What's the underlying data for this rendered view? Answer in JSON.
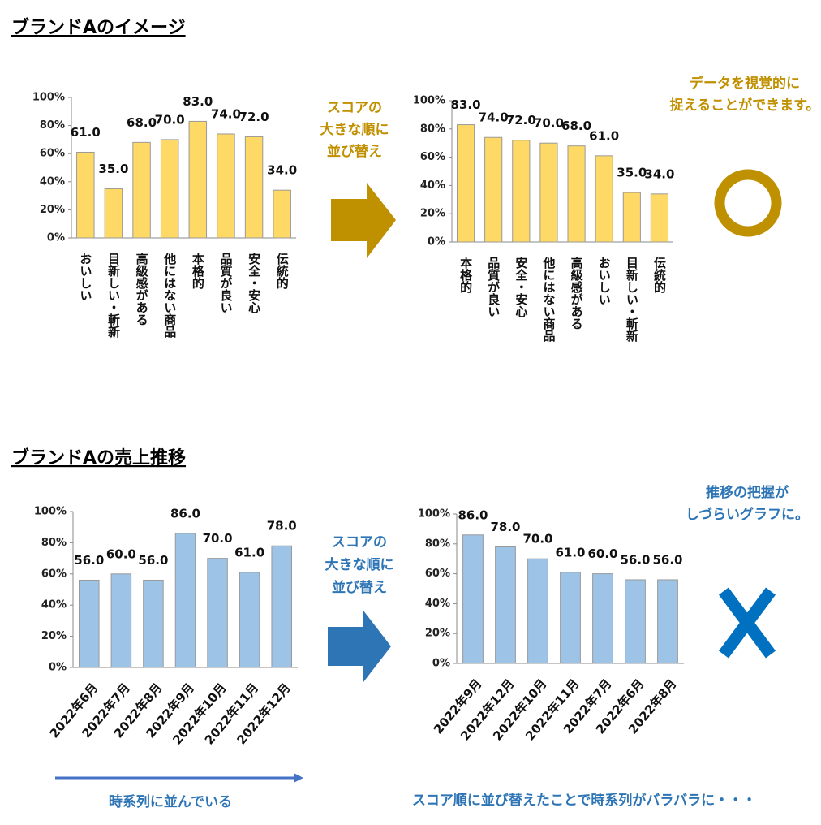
{
  "sections": [
    {
      "title": "ブランドAのイメージ",
      "arrow_label": [
        "スコアの",
        "大きな順に",
        "並び替え"
      ],
      "note": [
        "データを視覚的に",
        "捉えることができます。"
      ]
    },
    {
      "title": "ブランドAの売上推移",
      "arrow_label": [
        "スコアの",
        "大きな順に",
        "並び替え"
      ],
      "note": [
        "推移の把握が",
        "しづらいグラフに。"
      ],
      "caption_left": "時系列に並んでいる",
      "caption_right": "スコア順に並び替えたことで時系列がバラバラに・・・"
    }
  ],
  "chart_data": [
    {
      "type": "bar",
      "categories": [
        "おいしい",
        "目新しい・斬新",
        "高級感がある",
        "他にはない商品",
        "本格的",
        "品質が良い",
        "安全・安心",
        "伝統的"
      ],
      "values": [
        61,
        35,
        68,
        70,
        83,
        74,
        72,
        34
      ],
      "value_labels": [
        "61.0",
        "35.0",
        "68.0",
        "70.0",
        "83.0",
        "74.0",
        "72.0",
        "34.0"
      ],
      "color": "#FFD966",
      "ylim": [
        0,
        100
      ],
      "yticks": [
        {
          "value": 0,
          "label": "0%"
        },
        {
          "value": 20,
          "label": "20%"
        },
        {
          "value": 40,
          "label": "40%"
        },
        {
          "value": 60,
          "label": "60%"
        },
        {
          "value": 80,
          "label": "80%"
        },
        {
          "value": 100,
          "label": "100%"
        }
      ]
    },
    {
      "type": "bar",
      "categories": [
        "本格的",
        "品質が良い",
        "安全・安心",
        "他にはない商品",
        "高級感がある",
        "おいしい",
        "目新しい・斬新",
        "伝統的"
      ],
      "values": [
        83,
        74,
        72,
        70,
        68,
        61,
        35,
        34
      ],
      "value_labels": [
        "83.0",
        "74.0",
        "72.0",
        "70.0",
        "68.0",
        "61.0",
        "35.0",
        "34.0"
      ],
      "color": "#FFD966",
      "ylim": [
        0,
        100
      ],
      "yticks": [
        {
          "value": 0,
          "label": "0%"
        },
        {
          "value": 20,
          "label": "20%"
        },
        {
          "value": 40,
          "label": "40%"
        },
        {
          "value": 60,
          "label": "60%"
        },
        {
          "value": 80,
          "label": "80%"
        },
        {
          "value": 100,
          "label": "100%"
        }
      ]
    },
    {
      "type": "bar",
      "categories": [
        "2022年6月",
        "2022年7月",
        "2022年8月",
        "2022年9月",
        "2022年10月",
        "2022年11月",
        "2022年12月"
      ],
      "values": [
        56,
        60,
        56,
        86,
        70,
        61,
        78
      ],
      "value_labels": [
        "56.0",
        "60.0",
        "56.0",
        "86.0",
        "70.0",
        "61.0",
        "78.0"
      ],
      "color": "#9DC3E6",
      "ylim": [
        0,
        100
      ],
      "yticks": [
        {
          "value": 0,
          "label": "0%"
        },
        {
          "value": 20,
          "label": "20%"
        },
        {
          "value": 40,
          "label": "40%"
        },
        {
          "value": 60,
          "label": "60%"
        },
        {
          "value": 80,
          "label": "80%"
        },
        {
          "value": 100,
          "label": "100%"
        }
      ]
    },
    {
      "type": "bar",
      "categories": [
        "2022年9月",
        "2022年12月",
        "2022年10月",
        "2022年11月",
        "2022年7月",
        "2022年6月",
        "2022年8月"
      ],
      "values": [
        86,
        78,
        70,
        61,
        60,
        56,
        56
      ],
      "value_labels": [
        "86.0",
        "78.0",
        "70.0",
        "61.0",
        "60.0",
        "56.0",
        "56.0"
      ],
      "color": "#9DC3E6",
      "ylim": [
        0,
        100
      ],
      "yticks": [
        {
          "value": 0,
          "label": "0%"
        },
        {
          "value": 20,
          "label": "20%"
        },
        {
          "value": 40,
          "label": "40%"
        },
        {
          "value": 60,
          "label": "60%"
        },
        {
          "value": 80,
          "label": "80%"
        },
        {
          "value": 100,
          "label": "100%"
        }
      ]
    }
  ]
}
